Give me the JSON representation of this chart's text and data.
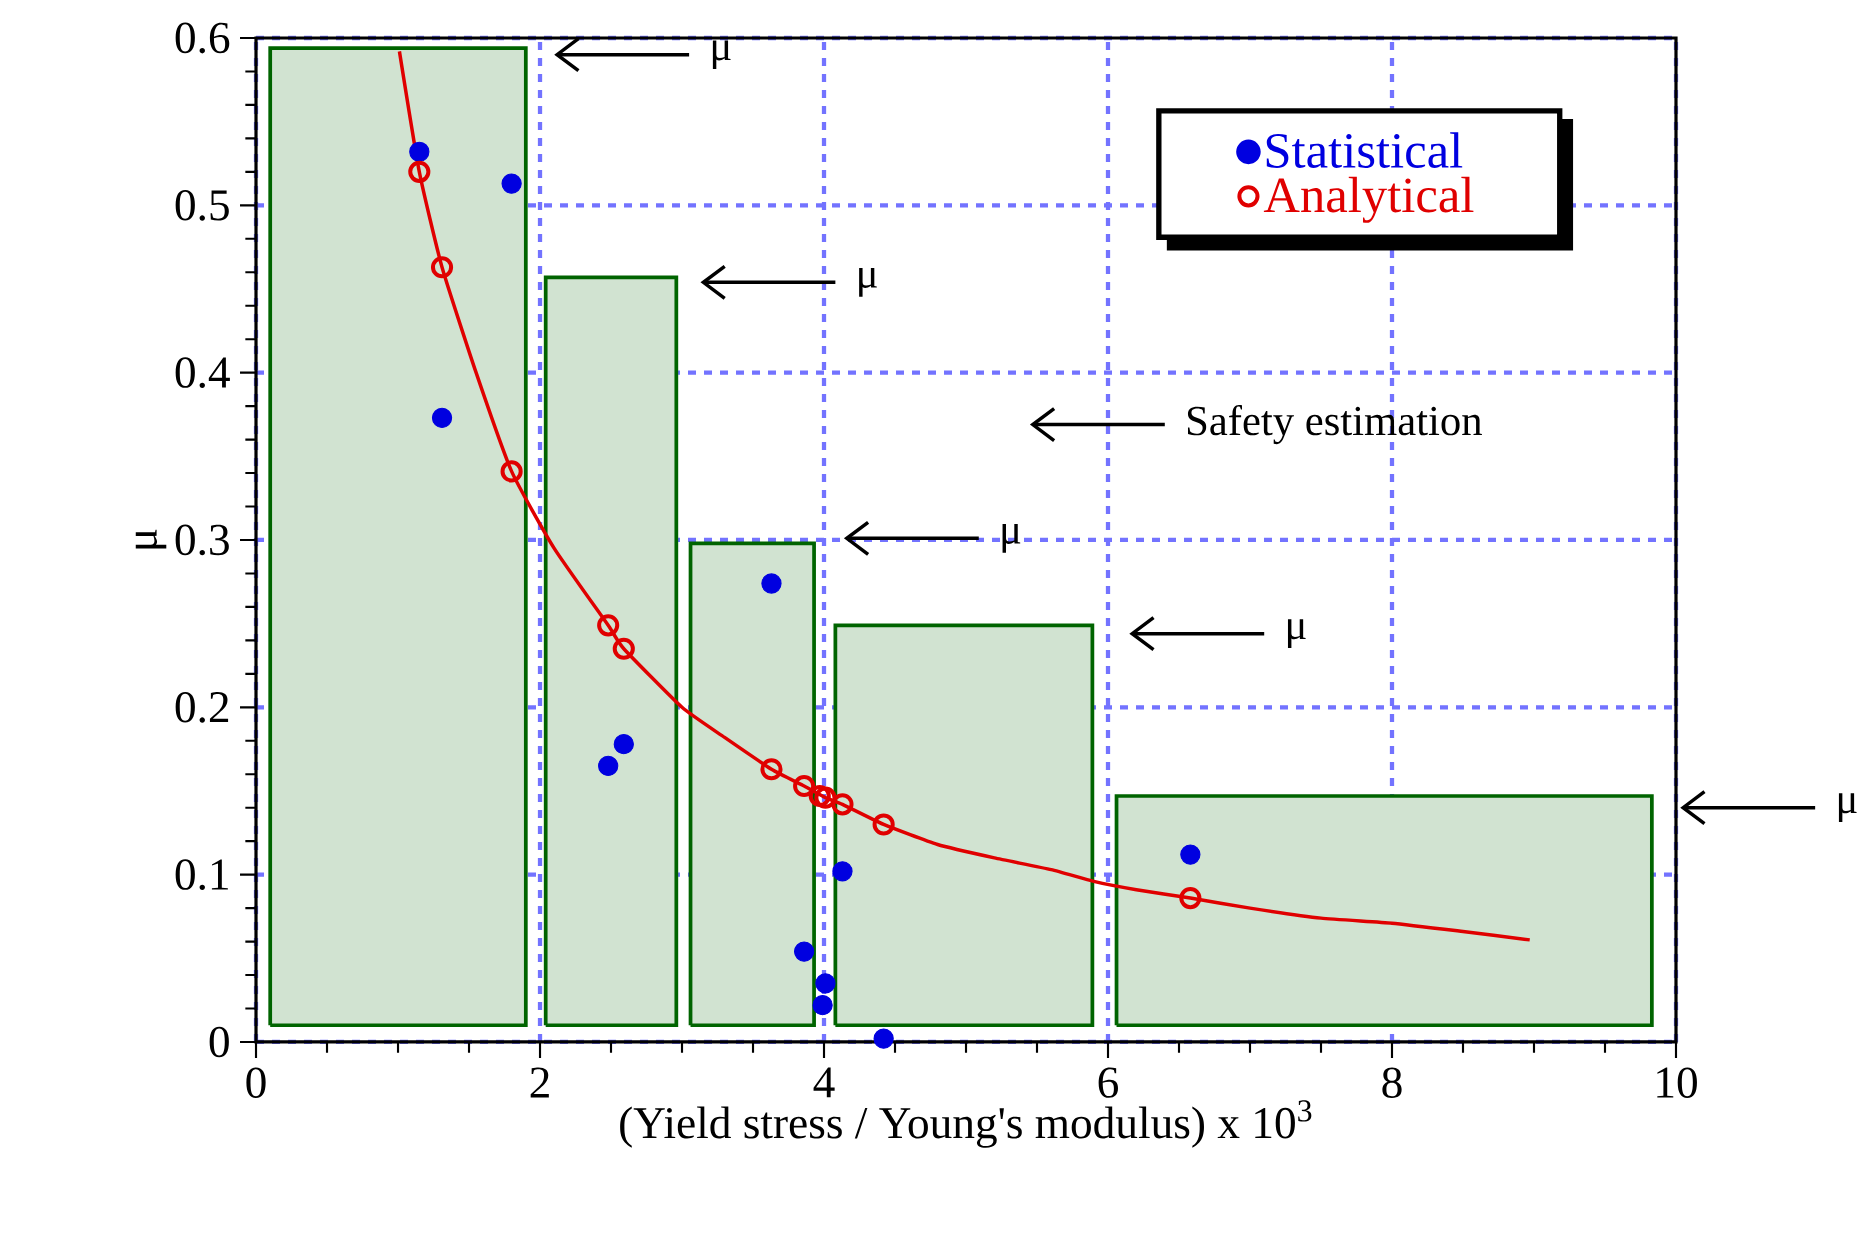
{
  "chart_data": {
    "type": "scatter",
    "xlabel": "(Yield stress / Young's modulus) x 10$^{3}$",
    "ylabel": "μ",
    "xlim": [
      0,
      10
    ],
    "ylim": [
      0,
      0.6
    ],
    "xticks": [
      0,
      2,
      4,
      6,
      8,
      10
    ],
    "yticks": [
      0,
      0.1,
      0.2,
      0.3,
      0.4,
      0.5,
      0.6
    ],
    "grid": true,
    "legend": "top right",
    "series": [
      {
        "type": "area",
        "color": "#006400",
        "x": [
          0.1,
          0.1,
          1.9,
          1.9,
          0.1
        ],
        "values": [
          0.01,
          0.594,
          0.594,
          0.01,
          0.01
        ]
      },
      {
        "type": "area",
        "color": "#006400",
        "x": [
          2.04,
          2.04,
          2.96,
          2.96,
          2.04
        ],
        "values": [
          0.01,
          0.457,
          0.457,
          0.01,
          0.01
        ]
      },
      {
        "type": "area",
        "color": "#006400",
        "x": [
          3.06,
          3.06,
          3.93,
          3.93,
          3.06
        ],
        "values": [
          0.01,
          0.298,
          0.298,
          0.01,
          0.01
        ]
      },
      {
        "type": "area",
        "color": "#006400",
        "x": [
          4.08,
          4.08,
          5.89,
          5.89,
          4.08
        ],
        "values": [
          0.01,
          0.249,
          0.249,
          0.01,
          0.01
        ]
      },
      {
        "type": "area",
        "color": "#006400",
        "x": [
          6.06,
          6.06,
          9.83,
          9.83,
          6.06
        ],
        "values": [
          0.01,
          0.147,
          0.147,
          0.01,
          0.01
        ]
      },
      {
        "type": "line",
        "color": "#e00000",
        "marker": "none",
        "x": [
          1.01,
          1.15,
          1.31,
          1.55,
          1.8,
          2.1,
          2.48,
          2.59,
          3.0,
          3.3,
          3.63,
          3.86,
          4.01,
          4.13,
          4.42,
          4.8,
          5.2,
          5.6,
          5.9,
          6.2,
          6.58,
          7.0,
          7.5,
          8.0,
          8.5,
          8.97
        ],
        "values": [
          0.592,
          0.52,
          0.463,
          0.4,
          0.341,
          0.295,
          0.249,
          0.235,
          0.2,
          0.182,
          0.163,
          0.153,
          0.146,
          0.142,
          0.13,
          0.118,
          0.11,
          0.103,
          0.096,
          0.091,
          0.086,
          0.08,
          0.074,
          0.071,
          0.066,
          0.061
        ]
      },
      {
        "name": "Statistical",
        "color": "#0000e0",
        "marker": "circle",
        "x": [
          1.15,
          1.8,
          1.31,
          2.48,
          2.59,
          3.63,
          4.13,
          3.86,
          4.01,
          3.99,
          4.42,
          6.58
        ],
        "values": [
          0.532,
          0.513,
          0.373,
          0.165,
          0.178,
          0.274,
          0.102,
          0.054,
          0.035,
          0.022,
          0.002,
          0.112
        ]
      },
      {
        "name": "Analytical",
        "color": "#e00000",
        "marker": "open circle",
        "x": [
          1.15,
          1.31,
          1.8,
          2.48,
          2.59,
          3.63,
          3.86,
          3.97,
          4.01,
          4.13,
          4.42,
          6.58
        ],
        "values": [
          0.52,
          0.463,
          0.341,
          0.249,
          0.235,
          0.163,
          0.153,
          0.147,
          0.146,
          0.142,
          0.13,
          0.086
        ]
      }
    ],
    "annotations": [
      "μ",
      "μ",
      "Safety estimation",
      "μ",
      "μ",
      "μ"
    ]
  }
}
